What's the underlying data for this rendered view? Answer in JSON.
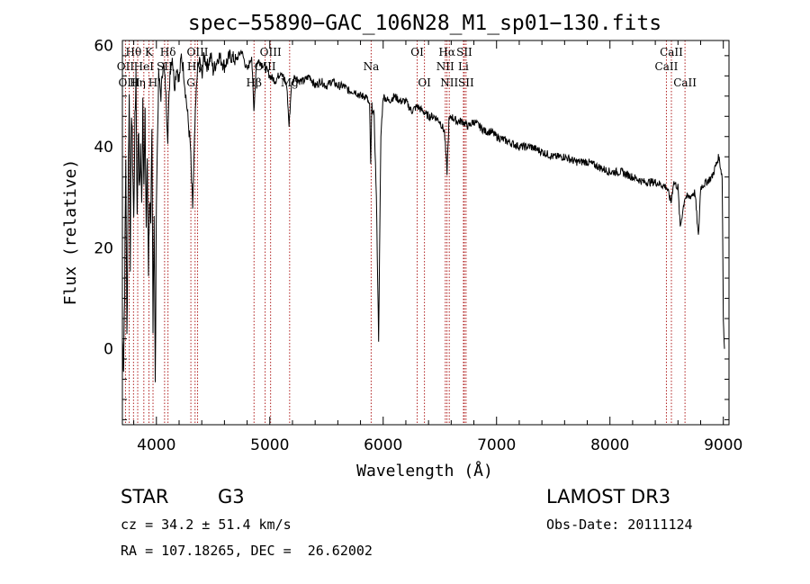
{
  "chart_data": {
    "type": "line",
    "title": "spec−55890−GAC_106N28_M1_sp01−130.fits",
    "xlabel": "Wavelength (Å)",
    "ylabel": "Flux (relative)",
    "xlim": [
      3700,
      9050
    ],
    "ylim": [
      -15,
      61
    ],
    "xticks": [
      4000,
      5000,
      6000,
      7000,
      8000,
      9000
    ],
    "yticks": [
      0,
      20,
      40,
      60
    ],
    "series": [
      {
        "name": "spectrum",
        "points": [
          [
            3700,
            2
          ],
          [
            3710,
            -3
          ],
          [
            3720,
            12
          ],
          [
            3730,
            38
          ],
          [
            3740,
            2
          ],
          [
            3750,
            30
          ],
          [
            3760,
            50
          ],
          [
            3770,
            18
          ],
          [
            3780,
            48
          ],
          [
            3790,
            38
          ],
          [
            3800,
            25
          ],
          [
            3810,
            44
          ],
          [
            3820,
            55
          ],
          [
            3830,
            25
          ],
          [
            3840,
            45
          ],
          [
            3850,
            30
          ],
          [
            3860,
            40
          ],
          [
            3870,
            28
          ],
          [
            3880,
            50
          ],
          [
            3890,
            33
          ],
          [
            3900,
            45
          ],
          [
            3910,
            24
          ],
          [
            3920,
            38
          ],
          [
            3930,
            16
          ],
          [
            3940,
            30
          ],
          [
            3950,
            22
          ],
          [
            3960,
            42
          ],
          [
            3970,
            6
          ],
          [
            3980,
            28
          ],
          [
            3990,
            -8
          ],
          [
            4000,
            30
          ],
          [
            4020,
            54
          ],
          [
            4040,
            50
          ],
          [
            4060,
            57
          ],
          [
            4080,
            52
          ],
          [
            4100,
            42
          ],
          [
            4120,
            55
          ],
          [
            4140,
            58
          ],
          [
            4160,
            52
          ],
          [
            4180,
            56
          ],
          [
            4200,
            53
          ],
          [
            4220,
            58
          ],
          [
            4240,
            55
          ],
          [
            4260,
            50
          ],
          [
            4280,
            45
          ],
          [
            4300,
            40
          ],
          [
            4310,
            33
          ],
          [
            4320,
            28
          ],
          [
            4340,
            44
          ],
          [
            4360,
            55
          ],
          [
            4380,
            57
          ],
          [
            4400,
            54
          ],
          [
            4420,
            58
          ],
          [
            4450,
            56
          ],
          [
            4480,
            58
          ],
          [
            4500,
            55
          ],
          [
            4550,
            58
          ],
          [
            4600,
            56
          ],
          [
            4650,
            58
          ],
          [
            4700,
            57
          ],
          [
            4750,
            59
          ],
          [
            4800,
            55
          ],
          [
            4840,
            58
          ],
          [
            4860,
            47
          ],
          [
            4880,
            56
          ],
          [
            4900,
            57
          ],
          [
            4950,
            56
          ],
          [
            5000,
            54
          ],
          [
            5050,
            53
          ],
          [
            5100,
            55
          ],
          [
            5150,
            52
          ],
          [
            5170,
            44
          ],
          [
            5190,
            52
          ],
          [
            5220,
            54
          ],
          [
            5260,
            53
          ],
          [
            5300,
            53
          ],
          [
            5350,
            54
          ],
          [
            5400,
            52
          ],
          [
            5450,
            53
          ],
          [
            5500,
            52
          ],
          [
            5550,
            53
          ],
          [
            5600,
            52
          ],
          [
            5650,
            52
          ],
          [
            5700,
            51
          ],
          [
            5750,
            51
          ],
          [
            5800,
            50
          ],
          [
            5850,
            50
          ],
          [
            5880,
            48
          ],
          [
            5890,
            36
          ],
          [
            5900,
            48
          ],
          [
            5920,
            46
          ],
          [
            5940,
            30
          ],
          [
            5960,
            2
          ],
          [
            5980,
            42
          ],
          [
            6000,
            50
          ],
          [
            6050,
            49
          ],
          [
            6100,
            50
          ],
          [
            6150,
            49
          ],
          [
            6200,
            49
          ],
          [
            6250,
            47
          ],
          [
            6300,
            48
          ],
          [
            6350,
            47
          ],
          [
            6400,
            46
          ],
          [
            6450,
            46
          ],
          [
            6500,
            45
          ],
          [
            6540,
            43
          ],
          [
            6563,
            35
          ],
          [
            6580,
            45
          ],
          [
            6600,
            46
          ],
          [
            6650,
            45
          ],
          [
            6700,
            45
          ],
          [
            6750,
            44
          ],
          [
            6800,
            45
          ],
          [
            6850,
            44
          ],
          [
            6900,
            43
          ],
          [
            6950,
            43
          ],
          [
            7000,
            42
          ],
          [
            7100,
            41
          ],
          [
            7200,
            40
          ],
          [
            7300,
            40
          ],
          [
            7400,
            39
          ],
          [
            7500,
            38
          ],
          [
            7600,
            38
          ],
          [
            7700,
            37
          ],
          [
            7800,
            37
          ],
          [
            7900,
            36
          ],
          [
            8000,
            35
          ],
          [
            8100,
            35
          ],
          [
            8200,
            34
          ],
          [
            8300,
            33
          ],
          [
            8400,
            33
          ],
          [
            8500,
            32
          ],
          [
            8540,
            29
          ],
          [
            8560,
            33
          ],
          [
            8600,
            32
          ],
          [
            8620,
            24
          ],
          [
            8660,
            30
          ],
          [
            8700,
            30
          ],
          [
            8750,
            31
          ],
          [
            8780,
            22
          ],
          [
            8800,
            32
          ],
          [
            8850,
            33
          ],
          [
            8900,
            34
          ],
          [
            8930,
            36
          ],
          [
            8960,
            38
          ],
          [
            8990,
            34
          ],
          [
            9000,
            6
          ],
          [
            9010,
            0
          ]
        ]
      }
    ],
    "lines": [
      {
        "label": "Hθ",
        "wavelength": 3798,
        "row": 1
      },
      {
        "label": "OII",
        "wavelength": 3727,
        "row": 2
      },
      {
        "label": "OIII",
        "wavelength": 3760,
        "row": 3
      },
      {
        "label": "Hη",
        "wavelength": 3835,
        "row": 3
      },
      {
        "label": "HeI",
        "wavelength": 3889,
        "row": 2
      },
      {
        "label": "K",
        "wavelength": 3934,
        "row": 1
      },
      {
        "label": "H",
        "wavelength": 3970,
        "row": 3
      },
      {
        "label": "SII",
        "wavelength": 4072,
        "row": 2
      },
      {
        "label": "Hδ",
        "wavelength": 4102,
        "row": 1
      },
      {
        "label": "OIII",
        "wavelength": 4363,
        "row": 1
      },
      {
        "label": "Hγ",
        "wavelength": 4341,
        "row": 2
      },
      {
        "label": "G",
        "wavelength": 4304,
        "row": 3
      },
      {
        "label": "Hβ",
        "wavelength": 4861,
        "row": 3
      },
      {
        "label": "OIII",
        "wavelength": 5007,
        "row": 1
      },
      {
        "label": "OIII",
        "wavelength": 4959,
        "row": 2
      },
      {
        "label": "Mg",
        "wavelength": 5175,
        "row": 3
      },
      {
        "label": "Na",
        "wavelength": 5894,
        "row": 2
      },
      {
        "label": "OI",
        "wavelength": 6300,
        "row": 1
      },
      {
        "label": "OI",
        "wavelength": 6364,
        "row": 3
      },
      {
        "label": "Hα",
        "wavelength": 6563,
        "row": 1
      },
      {
        "label": "SII",
        "wavelength": 6716,
        "row": 1
      },
      {
        "label": "NII",
        "wavelength": 6548,
        "row": 2
      },
      {
        "label": "Li",
        "wavelength": 6708,
        "row": 2
      },
      {
        "label": "NII",
        "wavelength": 6583,
        "row": 3
      },
      {
        "label": "SII",
        "wavelength": 6731,
        "row": 3
      },
      {
        "label": "CaII",
        "wavelength": 8542,
        "row": 1
      },
      {
        "label": "CaII",
        "wavelength": 8498,
        "row": 2
      },
      {
        "label": "CaII",
        "wavelength": 8662,
        "row": 3
      }
    ]
  },
  "info": {
    "class": "STAR",
    "subclass": "G3",
    "survey": "LAMOST DR3",
    "cz": "cz = 34.2 ± 51.4 km/s",
    "obsdate": "Obs-Date: 20111124",
    "coords": "RA = 107.18265, DEC =  26.62002"
  }
}
